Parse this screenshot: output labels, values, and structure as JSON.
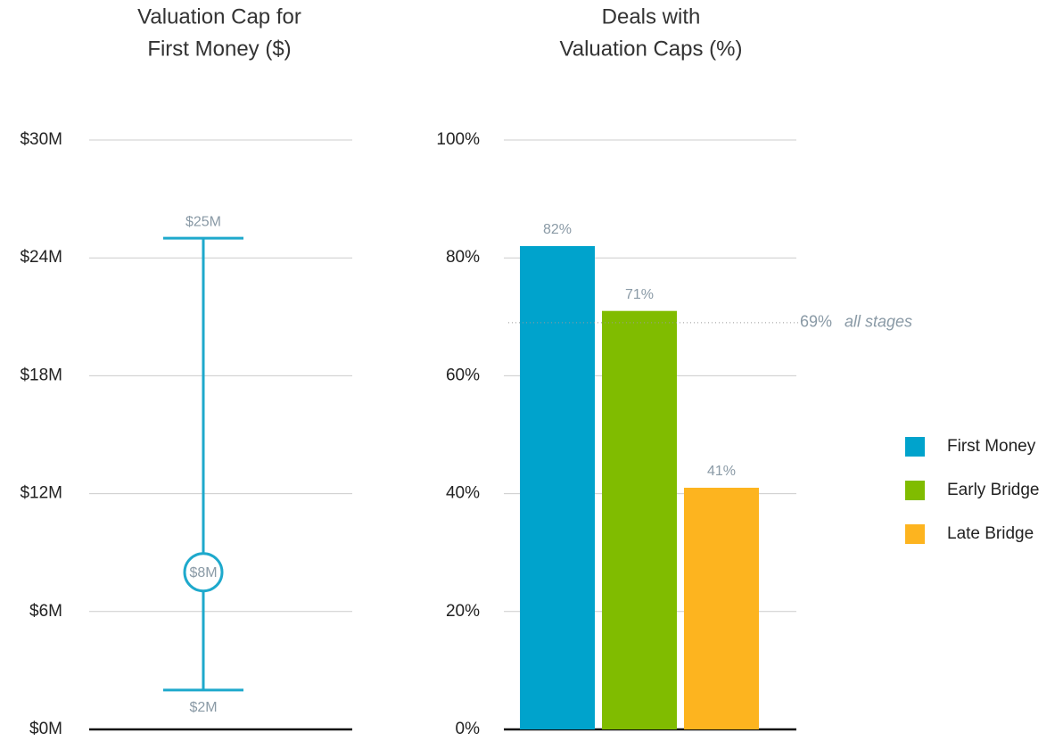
{
  "chart_data": [
    {
      "type": "range",
      "title": [
        "Valuation Cap for",
        "First Money ($)"
      ],
      "values": [
        2,
        8,
        25
      ],
      "value_labels": [
        "$2M",
        "$8M",
        "$25M"
      ],
      "color": "#1ea9cc",
      "ylim": [
        0,
        30
      ],
      "yticks": [
        {
          "value": 0,
          "label": "$0M"
        },
        {
          "value": 6,
          "label": "$6M"
        },
        {
          "value": 12,
          "label": "$12M"
        },
        {
          "value": 18,
          "label": "$18M"
        },
        {
          "value": 24,
          "label": "$24M"
        },
        {
          "value": 30,
          "label": "$30M"
        }
      ],
      "grid": true
    },
    {
      "type": "bar",
      "title": [
        "Deals with",
        "Valuation Caps (%)"
      ],
      "series": [
        {
          "name": "First Money",
          "color": "#00a3cc",
          "values": [
            82
          ],
          "value_labels": [
            "82%"
          ]
        },
        {
          "name": "Early Bridge",
          "color": "#80bc00",
          "values": [
            71
          ],
          "value_labels": [
            "71%"
          ]
        },
        {
          "name": "Late Bridge",
          "color": "#fdb41f",
          "values": [
            41
          ],
          "value_labels": [
            "41%"
          ]
        }
      ],
      "reference_line": {
        "value": 69,
        "label": "69%",
        "text": "all stages"
      },
      "ylim": [
        0,
        100
      ],
      "yticks": [
        {
          "value": 0,
          "label": "0%"
        },
        {
          "value": 20,
          "label": "20%"
        },
        {
          "value": 40,
          "label": "40%"
        },
        {
          "value": 60,
          "label": "60%"
        },
        {
          "value": 80,
          "label": "80%"
        },
        {
          "value": 100,
          "label": "100%"
        }
      ],
      "grid": true,
      "legend": "right"
    }
  ]
}
